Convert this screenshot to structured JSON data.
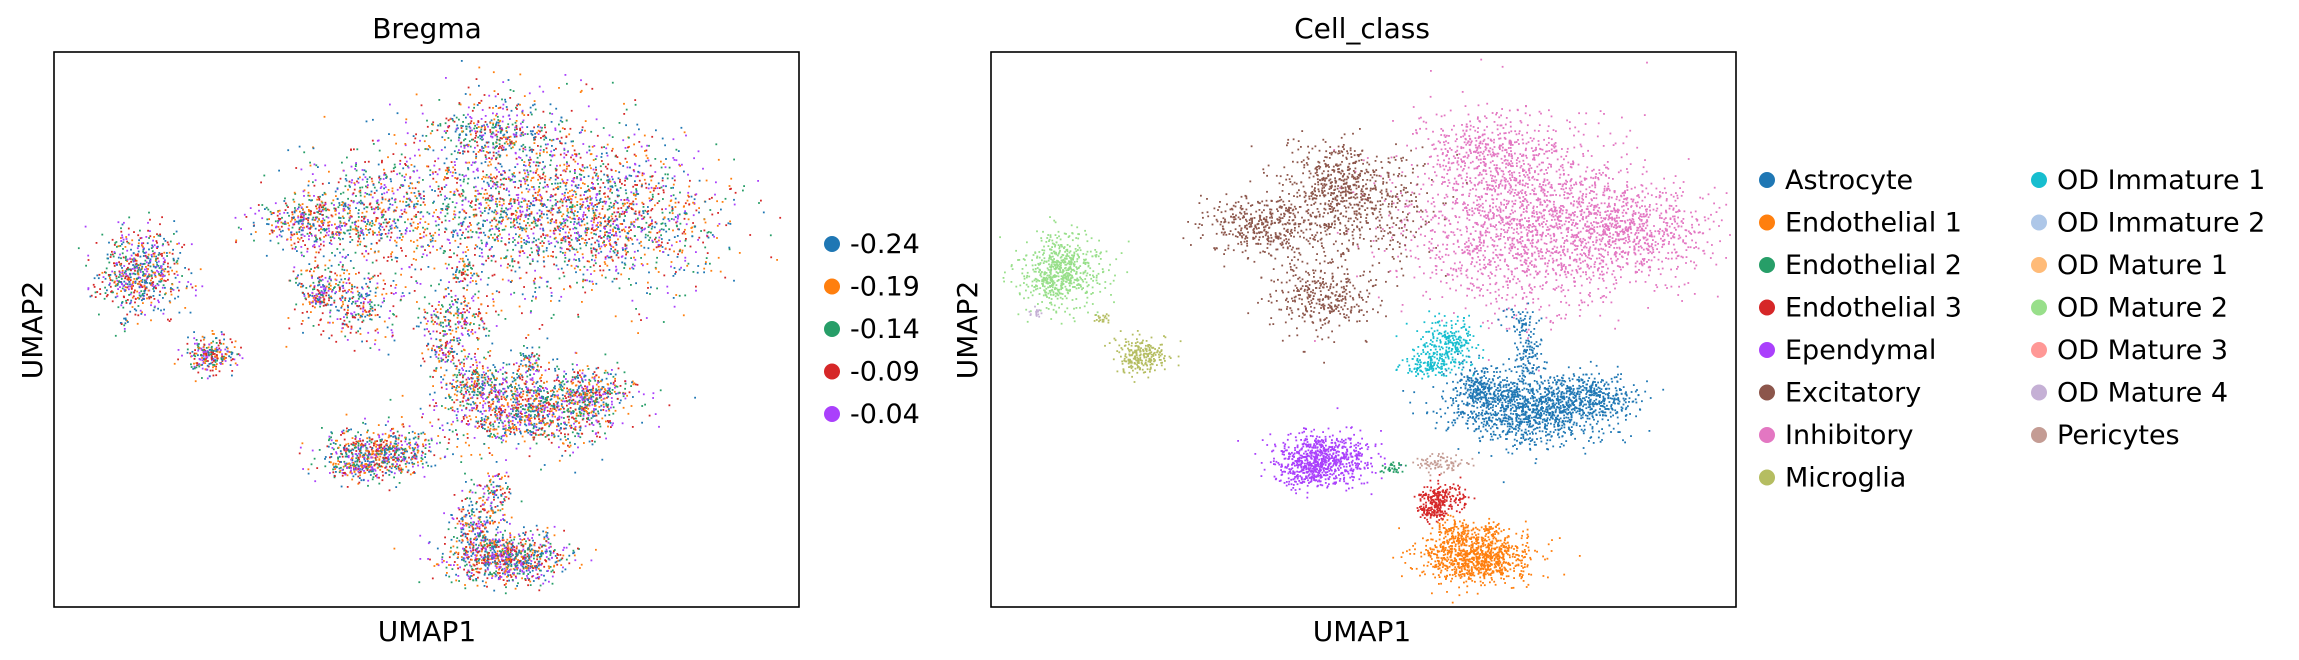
{
  "chart_data": [
    {
      "type": "scatter",
      "title": "Bregma",
      "xlabel": "UMAP1",
      "ylabel": "UMAP2",
      "grid": false,
      "ticks": false,
      "legend_position": "right",
      "color_by": "Bregma",
      "series": [
        {
          "name": "-0.24",
          "color": "#1f77b4"
        },
        {
          "name": "-0.19",
          "color": "#ff7f0e"
        },
        {
          "name": "-0.14",
          "color": "#279e68"
        },
        {
          "name": "-0.09",
          "color": "#d62728"
        },
        {
          "name": "-0.04",
          "color": "#aa40fc"
        }
      ],
      "mixing": "all categories evenly intermixed across clusters"
    },
    {
      "type": "scatter",
      "title": "Cell_class",
      "xlabel": "UMAP1",
      "ylabel": "UMAP2",
      "grid": false,
      "ticks": false,
      "legend_position": "right",
      "legend_columns": 2,
      "color_by": "Cell_class",
      "series": [
        {
          "name": "Astrocyte",
          "color": "#1f77b4"
        },
        {
          "name": "Endothelial 1",
          "color": "#ff7f0e"
        },
        {
          "name": "Endothelial 2",
          "color": "#279e68"
        },
        {
          "name": "Endothelial 3",
          "color": "#d62728"
        },
        {
          "name": "Ependymal",
          "color": "#aa40fc"
        },
        {
          "name": "Excitatory",
          "color": "#8c564b"
        },
        {
          "name": "Inhibitory",
          "color": "#e377c2"
        },
        {
          "name": "Microglia",
          "color": "#b5bd61"
        },
        {
          "name": "OD Immature 1",
          "color": "#17becf"
        },
        {
          "name": "OD Immature 2",
          "color": "#aec7e8"
        },
        {
          "name": "OD Mature 1",
          "color": "#ffbb78"
        },
        {
          "name": "OD Mature 2",
          "color": "#98df8a"
        },
        {
          "name": "OD Mature 3",
          "color": "#ff9896"
        },
        {
          "name": "OD Mature 4",
          "color": "#c5b0d5"
        },
        {
          "name": "Pericytes",
          "color": "#c49c94"
        }
      ]
    }
  ]
}
